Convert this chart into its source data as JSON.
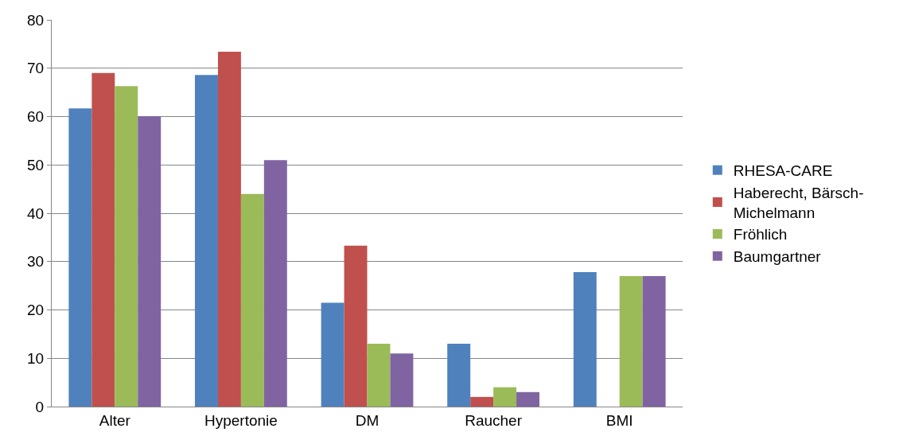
{
  "chart_data": {
    "type": "bar",
    "categories": [
      "Alter",
      "Hypertonie",
      "DM",
      "Raucher",
      "BMI"
    ],
    "series": [
      {
        "name": "RHESA-CARE",
        "color": "#4f81bd",
        "values": [
          61.7,
          68.6,
          21.5,
          13,
          27.8
        ]
      },
      {
        "name": "Haberecht, Bärsch-Michelmann",
        "color": "#c0504d",
        "values": [
          69,
          73.4,
          33.3,
          2,
          null
        ]
      },
      {
        "name": "Fröhlich",
        "color": "#9bbb59",
        "values": [
          66.3,
          44,
          13,
          4,
          27
        ]
      },
      {
        "name": "Baumgartner",
        "color": "#8064a2",
        "values": [
          60.1,
          51,
          11,
          3,
          27
        ]
      }
    ],
    "ylim": [
      0,
      80
    ],
    "yticks": [
      0,
      10,
      20,
      30,
      40,
      50,
      60,
      70,
      80
    ],
    "grid": "y",
    "legend": "right"
  }
}
